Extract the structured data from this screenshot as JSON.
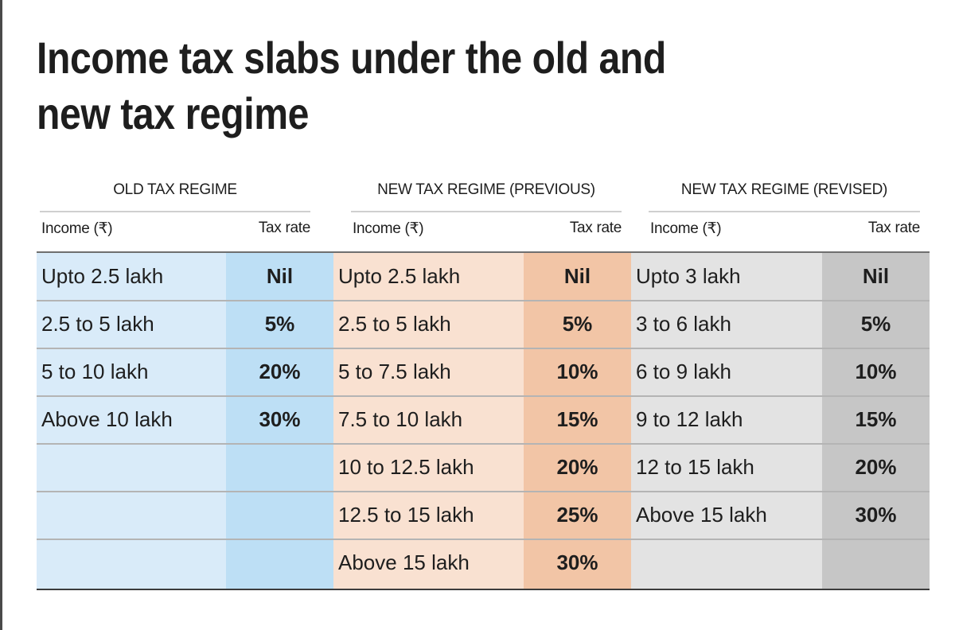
{
  "title": "Income tax slabs under the old and new tax regime",
  "chart_data": {
    "type": "table",
    "title": "Income tax slabs under the old and new tax regime",
    "tables": [
      {
        "name": "OLD TAX REGIME",
        "columns": [
          "Income (₹)",
          "Tax rate"
        ],
        "colors": {
          "income_bg": "#d9ebf9",
          "rate_bg": "#bddff5"
        },
        "rows": [
          [
            "Upto 2.5 lakh",
            "Nil"
          ],
          [
            "2.5 to 5 lakh",
            "5%"
          ],
          [
            "5 to 10 lakh",
            "20%"
          ],
          [
            "Above 10 lakh",
            "30%"
          ]
        ]
      },
      {
        "name": "NEW TAX REGIME (PREVIOUS)",
        "columns": [
          "Income (₹)",
          "Tax rate"
        ],
        "colors": {
          "income_bg": "#f9e1d1",
          "rate_bg": "#f2c5a6"
        },
        "rows": [
          [
            "Upto 2.5 lakh",
            "Nil"
          ],
          [
            "2.5 to 5 lakh",
            "5%"
          ],
          [
            "5 to 7.5 lakh",
            "10%"
          ],
          [
            "7.5 to 10 lakh",
            "15%"
          ],
          [
            "10 to 12.5 lakh",
            "20%"
          ],
          [
            "12.5 to 15 lakh",
            "25%"
          ],
          [
            "Above 15 lakh",
            "30%"
          ]
        ]
      },
      {
        "name": "NEW TAX REGIME (REVISED)",
        "columns": [
          "Income (₹)",
          "Tax rate"
        ],
        "colors": {
          "income_bg": "#e3e3e3",
          "rate_bg": "#c6c6c6"
        },
        "rows": [
          [
            "Upto 3 lakh",
            "Nil"
          ],
          [
            "3 to 6 lakh",
            "5%"
          ],
          [
            "6 to 9 lakh",
            "10%"
          ],
          [
            "9 to 12 lakh",
            "15%"
          ],
          [
            "12 to 15 lakh",
            "20%"
          ],
          [
            "Above 15 lakh",
            "30%"
          ]
        ]
      }
    ]
  }
}
